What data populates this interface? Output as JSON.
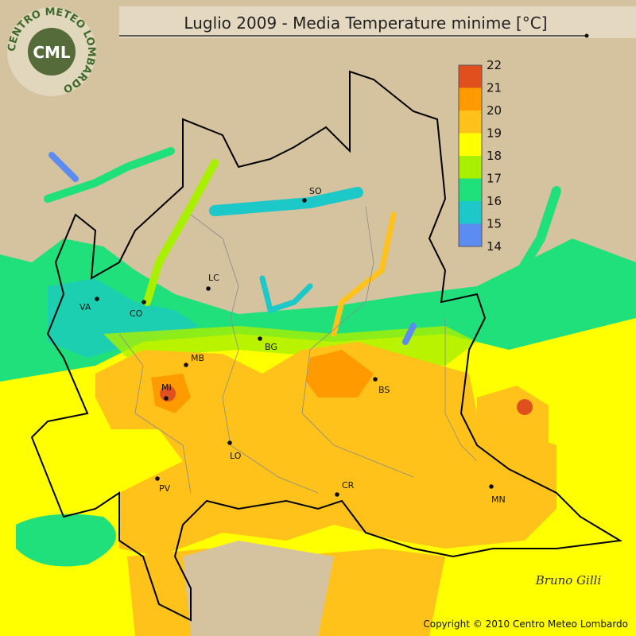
{
  "title": "Luglio 2009 - Media Temperature minime [°C]",
  "logo": {
    "ring_text": "CENTRO METEO LOMBARDO",
    "initials": "CML"
  },
  "legend": {
    "labels": [
      22,
      21,
      20,
      19,
      18,
      17,
      16,
      15,
      14
    ],
    "colors": [
      "#e0501e",
      "#ff9a00",
      "#ffc21a",
      "#ffff00",
      "#a8f000",
      "#20e07c",
      "#1cc8c8",
      "#5c8cf0"
    ]
  },
  "cities": [
    "SO",
    "LC",
    "VA",
    "CO",
    "BG",
    "MB",
    "MI",
    "BS",
    "LO",
    "PV",
    "CR",
    "MN"
  ],
  "signature": "Bruno Gilli",
  "copyright": "Copyright © 2010 Centro Meteo Lombardo"
}
